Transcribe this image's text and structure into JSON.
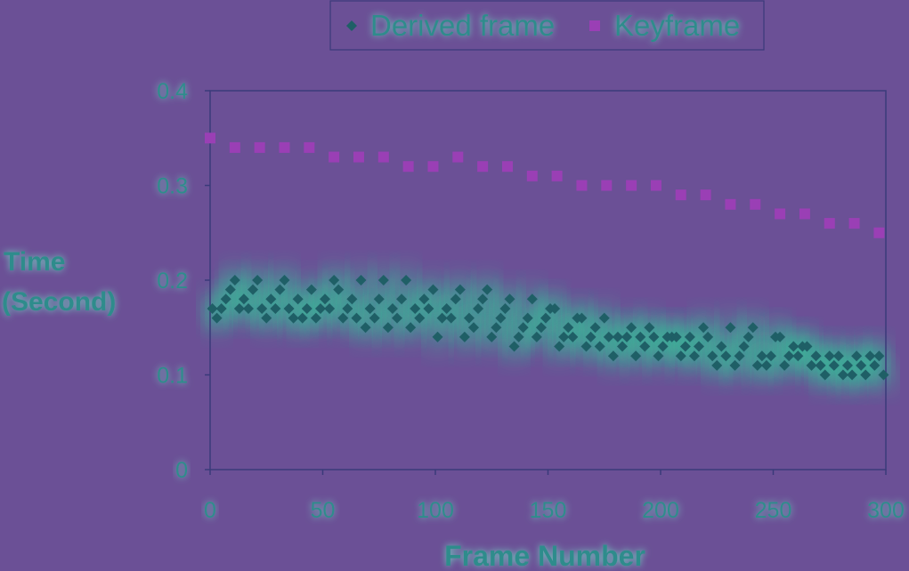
{
  "colors": {
    "background": "#6b5096",
    "plot_border": "#3a3a7a",
    "derived_marker": "#1f5f66",
    "derived_glow": "#2fd39a",
    "keyframe_marker": "#9a3fb5",
    "text": "#2f8c8c"
  },
  "chart_data": {
    "type": "scatter",
    "xlabel": "Frame Number",
    "ylabel": [
      "Time",
      "(Second)"
    ],
    "xlim": [
      0,
      300
    ],
    "ylim": [
      0,
      0.4
    ],
    "x_ticks": [
      "0",
      "50",
      "100",
      "150",
      "200",
      "250",
      "300"
    ],
    "y_ticks": [
      "0",
      "0.1",
      "0.2",
      "0.3",
      "0.4"
    ],
    "grid": false,
    "legend_position": "top-center",
    "series": [
      {
        "name": "Derived frame",
        "marker": "diamond",
        "points": [
          [
            1,
            0.17
          ],
          [
            3,
            0.16
          ],
          [
            5,
            0.17
          ],
          [
            7,
            0.18
          ],
          [
            9,
            0.19
          ],
          [
            11,
            0.2
          ],
          [
            13,
            0.17
          ],
          [
            15,
            0.18
          ],
          [
            17,
            0.17
          ],
          [
            19,
            0.19
          ],
          [
            21,
            0.2
          ],
          [
            23,
            0.17
          ],
          [
            25,
            0.16
          ],
          [
            27,
            0.18
          ],
          [
            29,
            0.17
          ],
          [
            31,
            0.19
          ],
          [
            33,
            0.2
          ],
          [
            35,
            0.17
          ],
          [
            37,
            0.16
          ],
          [
            39,
            0.18
          ],
          [
            41,
            0.16
          ],
          [
            43,
            0.17
          ],
          [
            45,
            0.19
          ],
          [
            47,
            0.16
          ],
          [
            49,
            0.17
          ],
          [
            51,
            0.18
          ],
          [
            53,
            0.17
          ],
          [
            55,
            0.2
          ],
          [
            57,
            0.19
          ],
          [
            59,
            0.16
          ],
          [
            61,
            0.17
          ],
          [
            63,
            0.18
          ],
          [
            65,
            0.16
          ],
          [
            67,
            0.2
          ],
          [
            69,
            0.15
          ],
          [
            71,
            0.17
          ],
          [
            73,
            0.16
          ],
          [
            75,
            0.18
          ],
          [
            77,
            0.2
          ],
          [
            79,
            0.15
          ],
          [
            81,
            0.17
          ],
          [
            83,
            0.16
          ],
          [
            85,
            0.18
          ],
          [
            87,
            0.2
          ],
          [
            89,
            0.15
          ],
          [
            91,
            0.17
          ],
          [
            93,
            0.16
          ],
          [
            95,
            0.18
          ],
          [
            97,
            0.17
          ],
          [
            99,
            0.19
          ],
          [
            101,
            0.14
          ],
          [
            103,
            0.16
          ],
          [
            105,
            0.17
          ],
          [
            107,
            0.16
          ],
          [
            109,
            0.18
          ],
          [
            111,
            0.19
          ],
          [
            113,
            0.14
          ],
          [
            115,
            0.16
          ],
          [
            117,
            0.15
          ],
          [
            119,
            0.17
          ],
          [
            121,
            0.18
          ],
          [
            123,
            0.19
          ],
          [
            125,
            0.14
          ],
          [
            127,
            0.15
          ],
          [
            129,
            0.16
          ],
          [
            131,
            0.17
          ],
          [
            133,
            0.18
          ],
          [
            135,
            0.13
          ],
          [
            137,
            0.14
          ],
          [
            139,
            0.15
          ],
          [
            141,
            0.16
          ],
          [
            143,
            0.18
          ],
          [
            145,
            0.14
          ],
          [
            147,
            0.15
          ],
          [
            149,
            0.16
          ],
          [
            151,
            0.17
          ],
          [
            153,
            0.17
          ],
          [
            155,
            0.13
          ],
          [
            157,
            0.14
          ],
          [
            159,
            0.15
          ],
          [
            161,
            0.14
          ],
          [
            163,
            0.16
          ],
          [
            165,
            0.16
          ],
          [
            167,
            0.13
          ],
          [
            169,
            0.14
          ],
          [
            171,
            0.15
          ],
          [
            173,
            0.13
          ],
          [
            175,
            0.16
          ],
          [
            177,
            0.14
          ],
          [
            179,
            0.12
          ],
          [
            181,
            0.14
          ],
          [
            183,
            0.13
          ],
          [
            185,
            0.14
          ],
          [
            187,
            0.15
          ],
          [
            189,
            0.12
          ],
          [
            191,
            0.14
          ],
          [
            193,
            0.13
          ],
          [
            195,
            0.15
          ],
          [
            197,
            0.14
          ],
          [
            199,
            0.12
          ],
          [
            201,
            0.13
          ],
          [
            203,
            0.14
          ],
          [
            205,
            0.14
          ],
          [
            207,
            0.14
          ],
          [
            209,
            0.12
          ],
          [
            211,
            0.13
          ],
          [
            213,
            0.14
          ],
          [
            215,
            0.12
          ],
          [
            217,
            0.13
          ],
          [
            219,
            0.15
          ],
          [
            221,
            0.14
          ],
          [
            223,
            0.12
          ],
          [
            225,
            0.11
          ],
          [
            227,
            0.13
          ],
          [
            229,
            0.12
          ],
          [
            231,
            0.15
          ],
          [
            233,
            0.11
          ],
          [
            235,
            0.12
          ],
          [
            237,
            0.13
          ],
          [
            239,
            0.14
          ],
          [
            241,
            0.15
          ],
          [
            243,
            0.11
          ],
          [
            245,
            0.12
          ],
          [
            247,
            0.11
          ],
          [
            249,
            0.12
          ],
          [
            251,
            0.14
          ],
          [
            253,
            0.14
          ],
          [
            255,
            0.11
          ],
          [
            257,
            0.12
          ],
          [
            259,
            0.13
          ],
          [
            261,
            0.12
          ],
          [
            263,
            0.13
          ],
          [
            265,
            0.13
          ],
          [
            267,
            0.11
          ],
          [
            269,
            0.12
          ],
          [
            271,
            0.11
          ],
          [
            273,
            0.1
          ],
          [
            275,
            0.12
          ],
          [
            277,
            0.11
          ],
          [
            279,
            0.12
          ],
          [
            281,
            0.1
          ],
          [
            283,
            0.11
          ],
          [
            285,
            0.1
          ],
          [
            287,
            0.12
          ],
          [
            289,
            0.11
          ],
          [
            291,
            0.1
          ],
          [
            293,
            0.12
          ],
          [
            295,
            0.11
          ],
          [
            297,
            0.12
          ],
          [
            299,
            0.1
          ]
        ]
      },
      {
        "name": "Keyframe",
        "marker": "square",
        "points": [
          [
            0,
            0.35
          ],
          [
            11,
            0.34
          ],
          [
            22,
            0.34
          ],
          [
            33,
            0.34
          ],
          [
            44,
            0.34
          ],
          [
            55,
            0.33
          ],
          [
            66,
            0.33
          ],
          [
            77,
            0.33
          ],
          [
            88,
            0.32
          ],
          [
            99,
            0.32
          ],
          [
            110,
            0.33
          ],
          [
            121,
            0.32
          ],
          [
            132,
            0.32
          ],
          [
            143,
            0.31
          ],
          [
            154,
            0.31
          ],
          [
            165,
            0.3
          ],
          [
            176,
            0.3
          ],
          [
            187,
            0.3
          ],
          [
            198,
            0.3
          ],
          [
            209,
            0.29
          ],
          [
            220,
            0.29
          ],
          [
            231,
            0.28
          ],
          [
            242,
            0.28
          ],
          [
            253,
            0.27
          ],
          [
            264,
            0.27
          ],
          [
            275,
            0.26
          ],
          [
            286,
            0.26
          ],
          [
            297,
            0.25
          ]
        ]
      }
    ]
  }
}
